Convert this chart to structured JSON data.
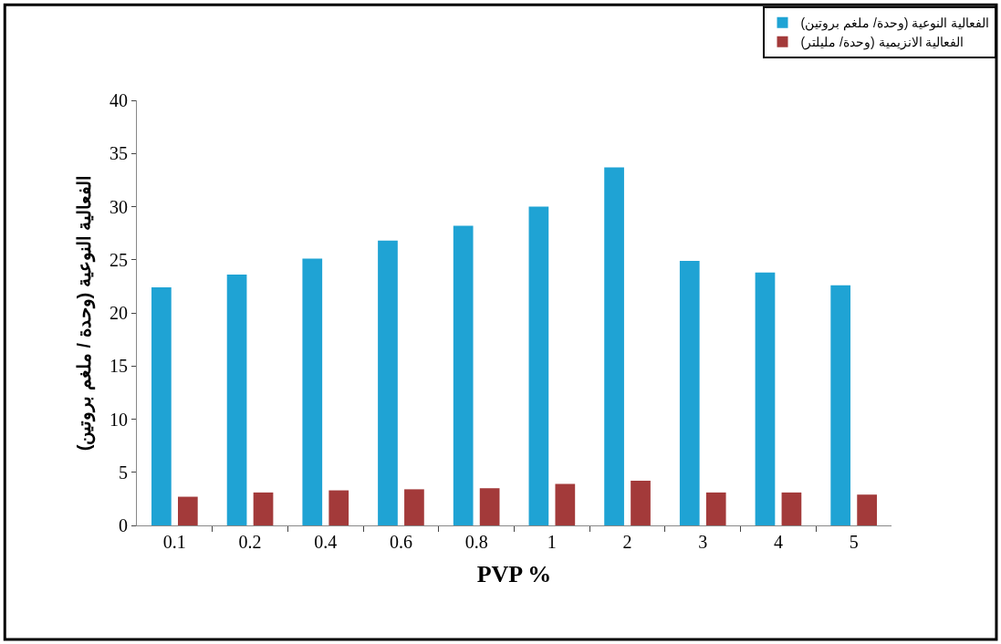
{
  "chart_data": {
    "type": "bar",
    "xlabel": "PVP %",
    "ylabel": "الفعالية النوعية (وحدة / ملغم بروتين)",
    "categories": [
      "0.1",
      "0.2",
      "0.4",
      "0.6",
      "0.8",
      "1",
      "2",
      "3",
      "4",
      "5"
    ],
    "series": [
      {
        "name": "الفعالية النوعية (وحدة/ ملغم بروتين)",
        "color": "#1fa3d4",
        "values": [
          22.4,
          23.6,
          25.1,
          26.8,
          28.2,
          30.0,
          33.7,
          24.9,
          23.8,
          22.6
        ]
      },
      {
        "name": "الفعالية الانزيمية (وحدة/ مليلتر)",
        "color": "#a33a3a",
        "values": [
          2.7,
          3.1,
          3.3,
          3.4,
          3.5,
          3.9,
          4.2,
          3.1,
          3.1,
          2.9
        ]
      }
    ],
    "ylim": [
      0,
      40
    ],
    "yticks": [
      0,
      5,
      10,
      15,
      20,
      25,
      30,
      35,
      40
    ],
    "legend": "top right"
  }
}
